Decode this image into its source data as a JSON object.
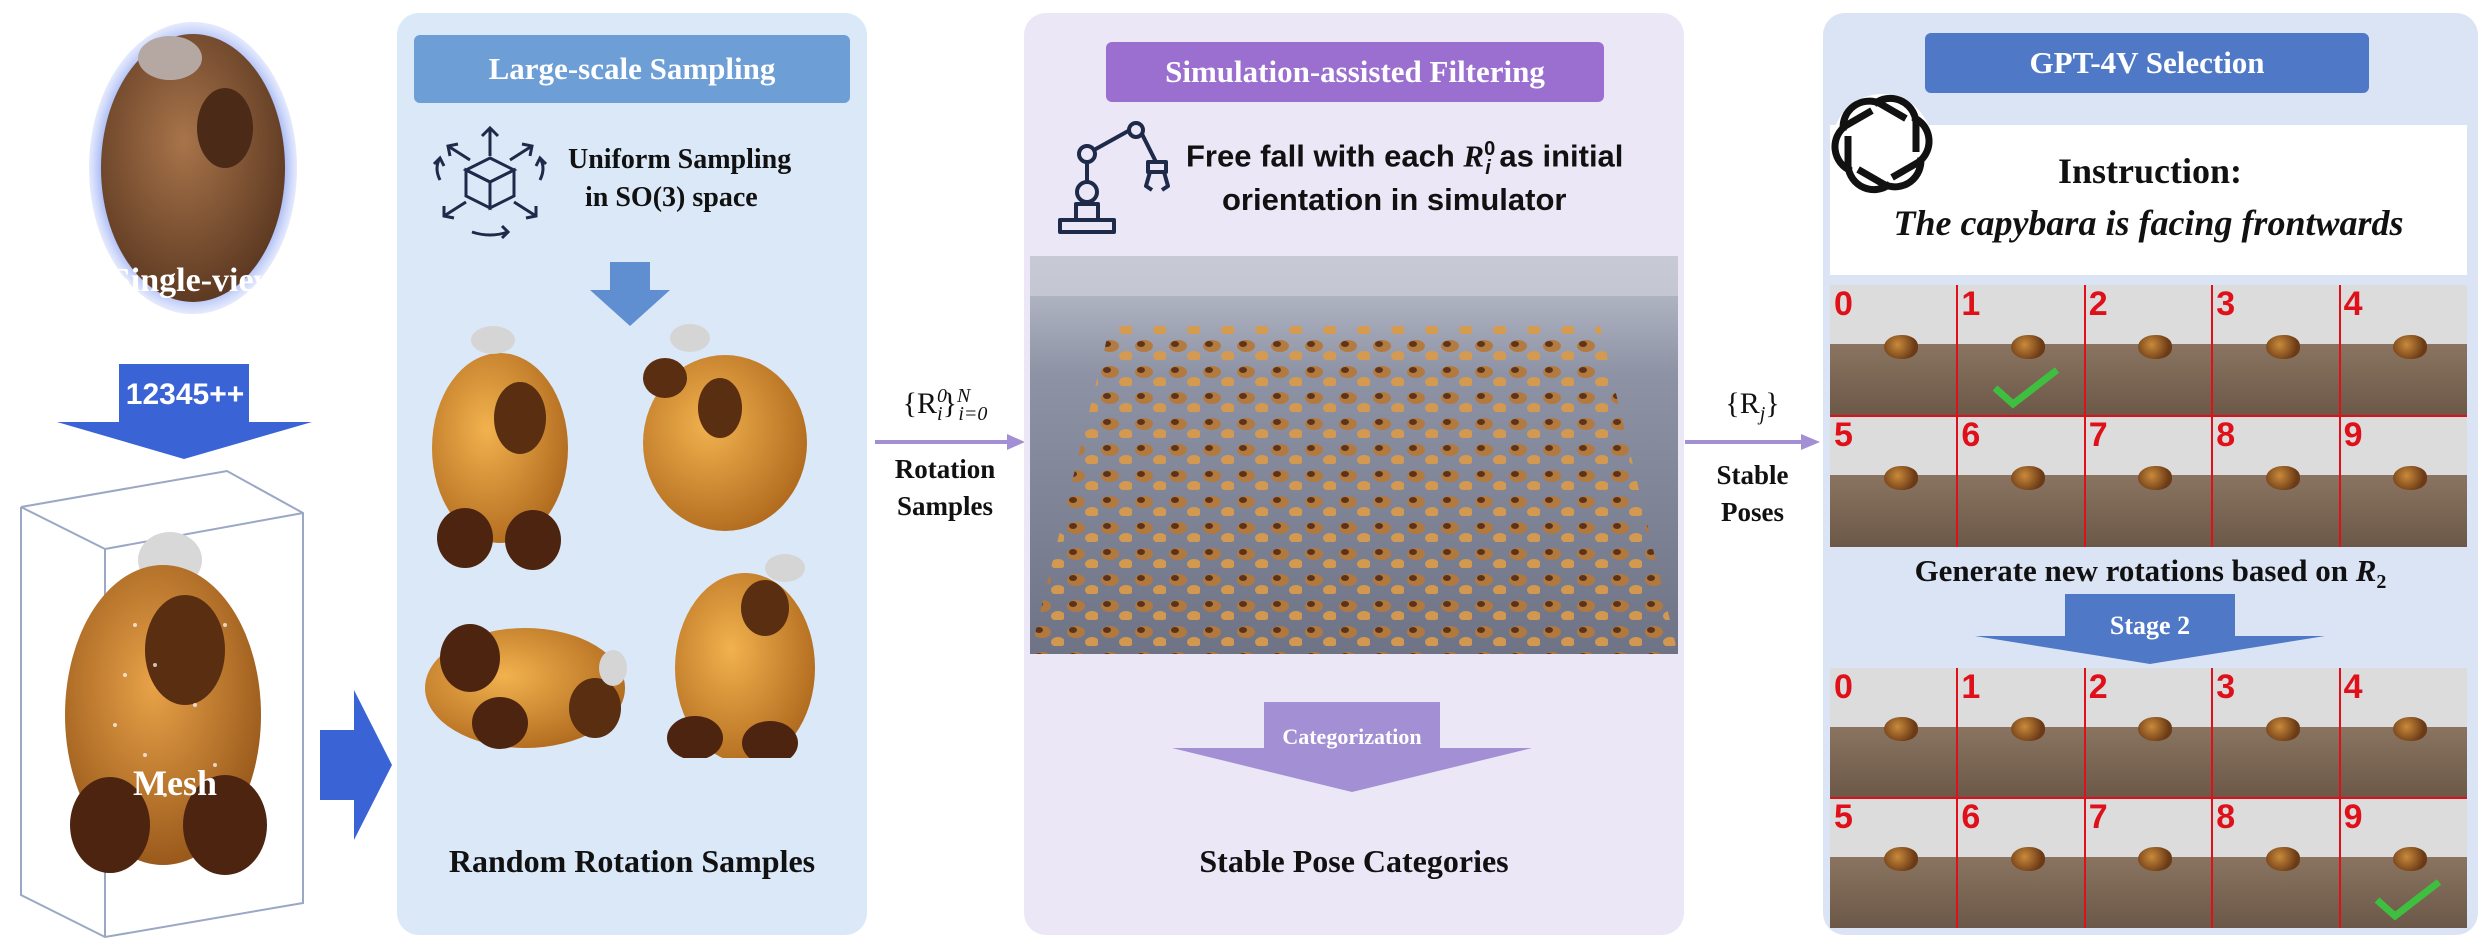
{
  "left": {
    "single_view_label": "Single-view",
    "model_label": "12345++",
    "mesh_label": "Mesh"
  },
  "sampling": {
    "header": "Large-scale Sampling",
    "method_line1": "Uniform Sampling",
    "method_line2": "in SO(3) space",
    "caption": "Random Rotation Samples"
  },
  "arrow1": {
    "math_base": "{R",
    "math_sub": "i",
    "math_sup": "0",
    "math_close": "}",
    "math_range_sup": "N",
    "math_range_sub": "i=0",
    "label_line1": "Rotation",
    "label_line2": "Samples"
  },
  "simulation": {
    "header": "Simulation-assisted Filtering",
    "desc_line1_pre": "Free fall with each ",
    "desc_R": "R",
    "desc_sub": "i",
    "desc_sup": "0",
    "desc_line1_post": " as initial",
    "desc_line2": "orientation in simulator",
    "categorization_label": "Categorization",
    "caption": "Stable Pose Categories"
  },
  "arrow2": {
    "math": "{R",
    "math_sub": "j",
    "math_close": "}",
    "label_line1": "Stable",
    "label_line2": "Poses"
  },
  "gpt": {
    "header": "GPT-4V Selection",
    "instruction_title": "Instruction:",
    "instruction_text": "The capybara is facing frontwards",
    "generate_text": "Generate new rotations based on ",
    "generate_R": "R",
    "generate_sub": "2",
    "stage_label": "Stage 2",
    "grid1_numbers": [
      "0",
      "1",
      "2",
      "3",
      "4",
      "5",
      "6",
      "7",
      "8",
      "9"
    ],
    "grid2_numbers": [
      "0",
      "1",
      "2",
      "3",
      "4",
      "5",
      "6",
      "7",
      "8",
      "9"
    ],
    "grid1_selected": 1,
    "grid2_selected": 9
  },
  "colors": {
    "sampling_header": "#6d9ed6",
    "simulation_header": "#9b6fd0",
    "gpt_header": "#4f79c7",
    "blue_arrow": "#3a63d6",
    "purple_arrow": "#a38fd4",
    "grid_lines": "#e0101a",
    "check": "#3fbf3f"
  }
}
